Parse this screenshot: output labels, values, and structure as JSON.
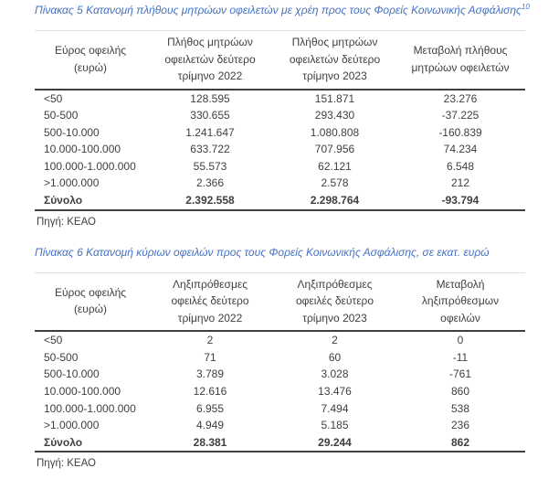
{
  "colors": {
    "caption_blue": "#4472C4",
    "body_text": "#3f3f3f",
    "rule_dark": "#3f3f3f",
    "rule_light": "#dbe1ea"
  },
  "tables": [
    {
      "caption": "Πίνακας 5 Κατανομή πλήθους μητρώων οφειλετών με χρέη προς τους Φορείς Κοινωνικής Ασφάλισης",
      "caption_footnote": "10",
      "headers": [
        "Εύρος οφειλής (ευρώ)",
        "Πλήθος μητρώων οφειλετών δεύτερο τρίμηνο 2022",
        "Πλήθος μητρώων οφειλετών δεύτερο τρίμηνο 2023",
        "Μεταβολή πλήθους μητρώων οφειλετών"
      ],
      "rows": [
        [
          "<50",
          "128.595",
          "151.871",
          "23.276"
        ],
        [
          "50-500",
          "330.655",
          "293.430",
          "-37.225"
        ],
        [
          "500-10.000",
          "1.241.647",
          "1.080.808",
          "-160.839"
        ],
        [
          "10.000-100.000",
          "633.722",
          "707.956",
          "74.234"
        ],
        [
          "100.000-1.000.000",
          "55.573",
          "62.121",
          "6.548"
        ],
        [
          ">1.000.000",
          "2.366",
          "2.578",
          "212"
        ]
      ],
      "total_rows": [
        [
          "Σύνολο",
          "2.392.558",
          "2.298.764",
          "-93.794"
        ]
      ],
      "source": "Πηγή: ΚΕΑΟ"
    },
    {
      "caption": "Πίνακας 6 Κατανομή κύριων οφειλών προς τους Φορείς Κοινωνικής Ασφάλισης, σε εκατ. ευρώ",
      "caption_footnote": "",
      "headers": [
        "Εύρος οφειλής (ευρώ)",
        "Ληξιπρόθεσμες οφειλές δεύτερο τρίμηνο 2022",
        "Ληξιπρόθεσμες οφειλές δεύτερο τρίμηνο 2023",
        "Μεταβολή ληξιπρόθεσμων οφειλών"
      ],
      "rows": [
        [
          "<50",
          "2",
          "2",
          "0"
        ],
        [
          "50-500",
          "71",
          "60",
          "-11"
        ],
        [
          "500-10.000",
          "3.789",
          "3.028",
          "-761"
        ],
        [
          "10.000-100.000",
          "12.616",
          "13.476",
          "860"
        ],
        [
          "100.000-1.000.000",
          "6.955",
          "7.494",
          "538"
        ],
        [
          ">1.000.000",
          "4.949",
          "5.185",
          "236"
        ]
      ],
      "total_rows": [
        [
          "Σύνολο",
          "28.381",
          "29.244",
          "862"
        ]
      ],
      "source": "Πηγή: ΚΕΑΟ"
    }
  ]
}
